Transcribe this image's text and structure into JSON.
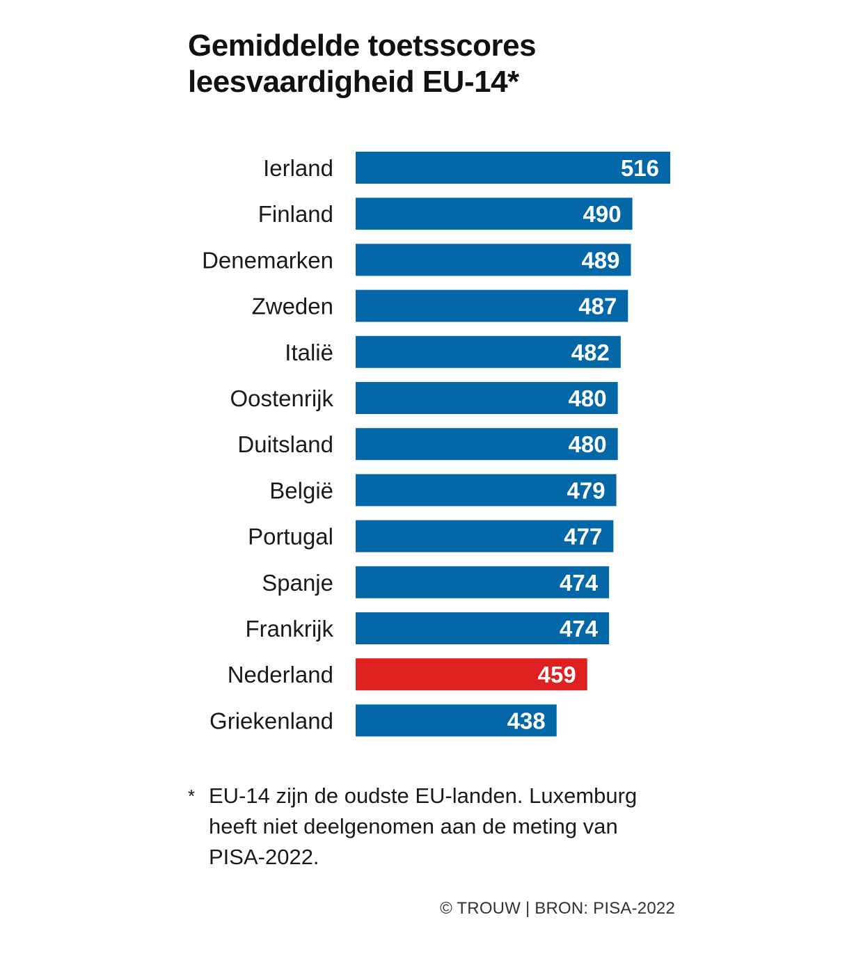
{
  "title": {
    "line1": "Gemiddelde toetsscores",
    "line2": "leesvaardigheid EU-14*"
  },
  "colors": {
    "default_bar": "#0468a8",
    "highlight_bar": "#de2020",
    "value_text": "#ffffff"
  },
  "chart_data": {
    "type": "bar",
    "orientation": "horizontal",
    "title": "Gemiddelde toetsscores leesvaardigheid EU-14*",
    "categories": [
      "Ierland",
      "Finland",
      "Denemarken",
      "Zweden",
      "Italië",
      "Oostenrijk",
      "Duitsland",
      "België",
      "Portugal",
      "Spanje",
      "Frankrijk",
      "Nederland",
      "Griekenland"
    ],
    "values": [
      516,
      490,
      489,
      487,
      482,
      480,
      480,
      479,
      477,
      474,
      474,
      459,
      438
    ],
    "value_labels": [
      "516",
      "490",
      "489",
      "487",
      "482",
      "480",
      "480",
      "479",
      "477",
      "474",
      "474",
      "459",
      "438"
    ],
    "highlight": "Nederland",
    "xlabel": "",
    "ylabel": "",
    "xlim": [
      300,
      516
    ]
  },
  "footnote": {
    "marker": "*",
    "text": "EU-14 zijn de oudste EU-landen. Luxemburg heeft niet deelgenomen aan de meting van PISA-2022."
  },
  "source": "© TROUW | BRON: PISA-2022"
}
